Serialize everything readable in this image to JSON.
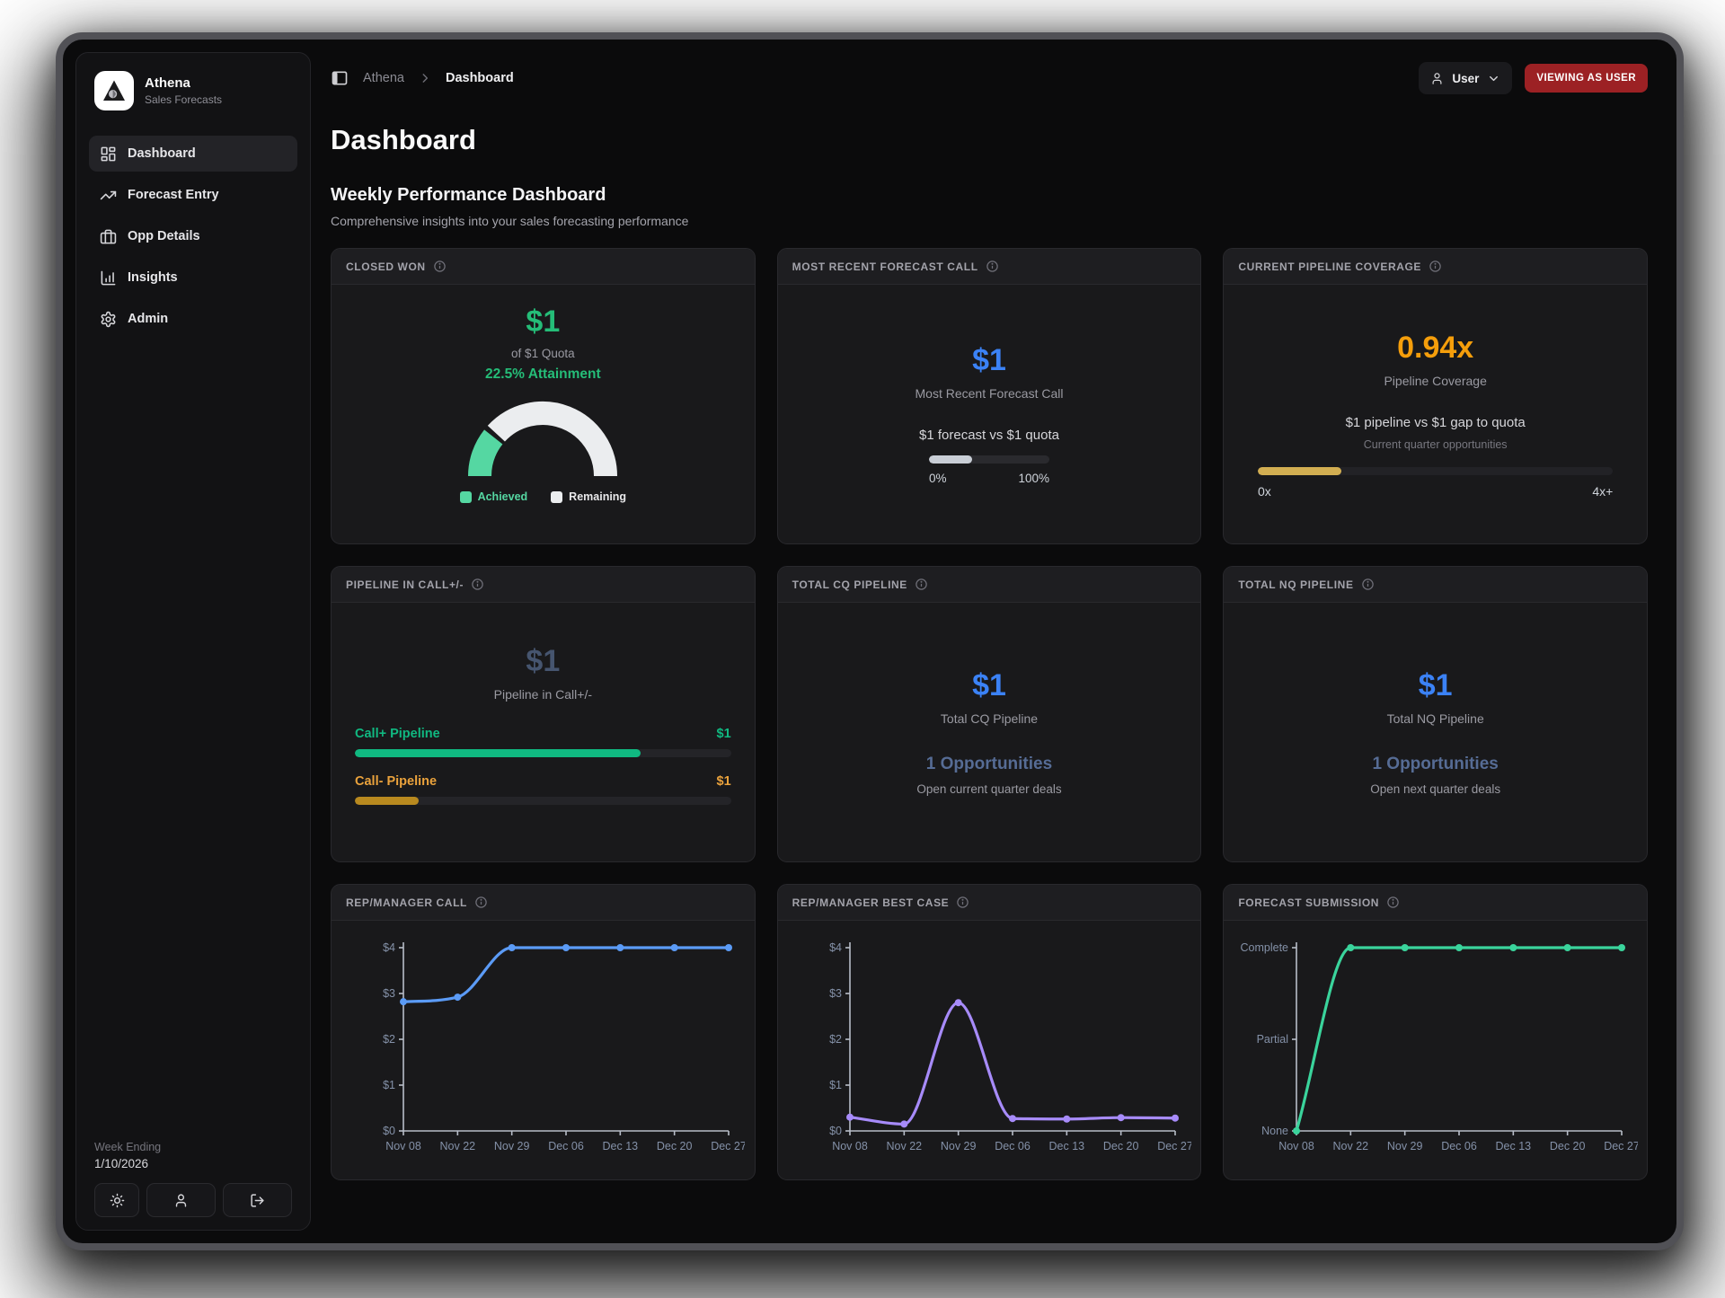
{
  "app": {
    "name": "Athena",
    "subtitle": "Sales Forecasts"
  },
  "colors": {
    "green": "#25bd78",
    "mint": "#55d7a2",
    "remaining": "#ebedef",
    "blue": "#3b82f6",
    "orange": "#f59e0b",
    "gold_bar": "#d2ae52",
    "slate_value": "#46556f",
    "muted_opps": "#566c95",
    "badge_red": "#9c2124"
  },
  "sidebar": {
    "items": [
      {
        "label": "Dashboard"
      },
      {
        "label": "Forecast Entry"
      },
      {
        "label": "Opp Details"
      },
      {
        "label": "Insights"
      },
      {
        "label": "Admin"
      }
    ],
    "week_ending_label": "Week Ending",
    "week_ending_date": "1/10/2026"
  },
  "topbar": {
    "breadcrumb_root": "Athena",
    "breadcrumb_current": "Dashboard",
    "user_label": "User",
    "viewing_badge": "VIEWING AS USER"
  },
  "page": {
    "title": "Dashboard",
    "section_title": "Weekly Performance Dashboard",
    "section_subtitle": "Comprehensive insights into your sales forecasting performance"
  },
  "cards": {
    "closed_won": {
      "title": "CLOSED WON",
      "value": "$1",
      "quota_line": "of $1 Quota",
      "attainment": "22.5% Attainment",
      "attainment_pct": 22.5,
      "legend_achieved": "Achieved",
      "legend_remaining": "Remaining"
    },
    "forecast_call": {
      "title": "MOST RECENT FORECAST CALL",
      "value": "$1",
      "label": "Most Recent Forecast Call",
      "compare": "$1 forecast vs $1 quota",
      "progress_pct": 36,
      "min_label": "0%",
      "max_label": "100%"
    },
    "coverage": {
      "title": "CURRENT PIPELINE COVERAGE",
      "value": "0.94x",
      "label": "Pipeline Coverage",
      "compare": "$1 pipeline vs $1 gap to quota",
      "sub": "Current quarter opportunities",
      "progress_pct": 23.5,
      "min_label": "0x",
      "max_label": "4x+"
    },
    "call_pipeline": {
      "title": "PIPELINE IN CALL+/-",
      "value": "$1",
      "label": "Pipeline in Call+/-",
      "bars": [
        {
          "label": "Call+ Pipeline",
          "value": "$1",
          "pct": 76,
          "color": "#10b981",
          "text_color": "#10b981"
        },
        {
          "label": "Call- Pipeline",
          "value": "$1",
          "pct": 17,
          "color": "#b8891f",
          "text_color": "#eaa23c"
        }
      ]
    },
    "cq": {
      "title": "TOTAL CQ PIPELINE",
      "value": "$1",
      "label": "Total CQ Pipeline",
      "opps": "1 Opportunities",
      "sub": "Open current quarter deals"
    },
    "nq": {
      "title": "TOTAL NQ PIPELINE",
      "value": "$1",
      "label": "Total NQ Pipeline",
      "opps": "1 Opportunities",
      "sub": "Open next quarter deals"
    }
  },
  "chart_data": [
    {
      "type": "line",
      "title": "REP/MANAGER CALL",
      "x": [
        "Nov 08",
        "Nov 22",
        "Nov 29",
        "Dec 06",
        "Dec 13",
        "Dec 20",
        "Dec 27"
      ],
      "values": [
        2.82,
        2.92,
        4,
        4,
        4,
        4,
        4
      ],
      "ylim": [
        0,
        4
      ],
      "ytick_values": [
        0,
        1,
        2,
        3,
        4
      ],
      "ytick_labels": [
        "$0",
        "$1",
        "$2",
        "$3",
        "$4"
      ],
      "color": "#5b9bf6",
      "legend": "none",
      "grid": "off"
    },
    {
      "type": "line",
      "title": "REP/MANAGER BEST CASE",
      "x": [
        "Nov 08",
        "Nov 22",
        "Nov 29",
        "Dec 06",
        "Dec 13",
        "Dec 20",
        "Dec 27"
      ],
      "values": [
        0.3,
        0.15,
        2.8,
        0.27,
        0.26,
        0.29,
        0.28
      ],
      "ylim": [
        0,
        4
      ],
      "ytick_values": [
        0,
        1,
        2,
        3,
        4
      ],
      "ytick_labels": [
        "$0",
        "$1",
        "$2",
        "$3",
        "$4"
      ],
      "color": "#a78bfa",
      "legend": "none",
      "grid": "off"
    },
    {
      "type": "line",
      "title": "FORECAST SUBMISSION",
      "x": [
        "Nov 08",
        "Nov 22",
        "Nov 29",
        "Dec 06",
        "Dec 13",
        "Dec 20",
        "Dec 27"
      ],
      "values": [
        0,
        2,
        2,
        2,
        2,
        2,
        2
      ],
      "ylim": [
        0,
        2
      ],
      "ytick_values": [
        0,
        1,
        2
      ],
      "ytick_labels": [
        "None",
        "Partial",
        "Complete"
      ],
      "color": "#3ad49c",
      "legend": "none",
      "grid": "off"
    }
  ]
}
